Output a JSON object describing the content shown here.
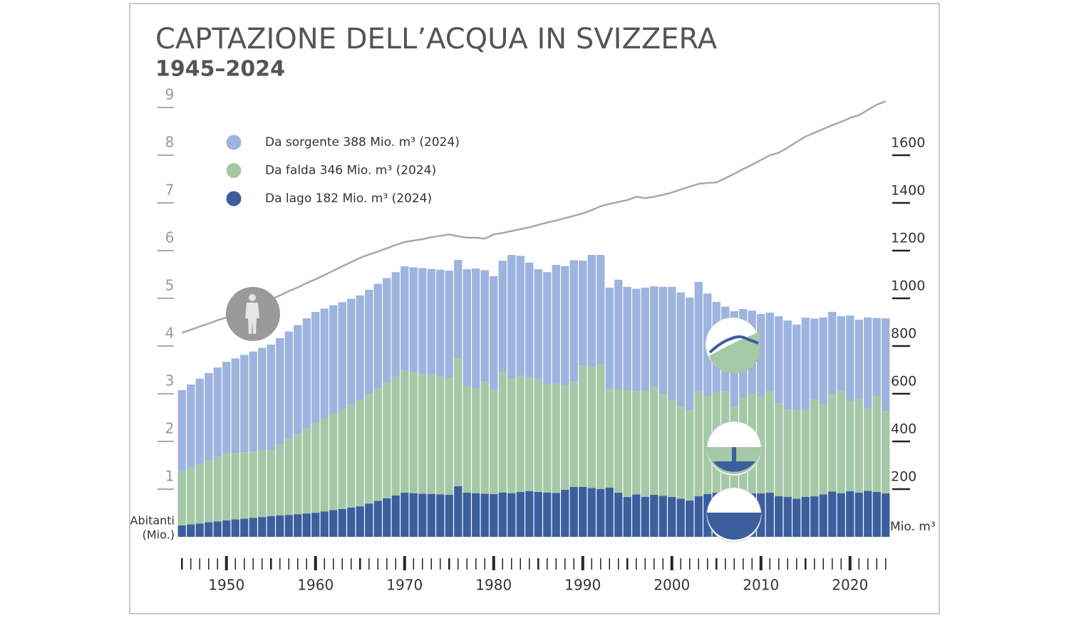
{
  "chart_data": {
    "type": "stacked-bar",
    "title": "CAPTAZIONE DELL’ACQUA IN SVIZZERA",
    "subtitle": "1945–2024",
    "ylabel": [
      "Abitanti",
      "(Mio.)"
    ],
    "y2label": "Mio. m³",
    "x": [
      1945,
      1946,
      1947,
      1948,
      1949,
      1950,
      1951,
      1952,
      1953,
      1954,
      1955,
      1956,
      1957,
      1958,
      1959,
      1960,
      1961,
      1962,
      1963,
      1964,
      1965,
      1966,
      1967,
      1968,
      1969,
      1970,
      1971,
      1972,
      1973,
      1974,
      1975,
      1976,
      1977,
      1978,
      1979,
      1980,
      1981,
      1982,
      1983,
      1984,
      1985,
      1986,
      1987,
      1988,
      1989,
      1990,
      1991,
      1992,
      1993,
      1994,
      1995,
      1996,
      1997,
      1998,
      1999,
      2000,
      2001,
      2002,
      2003,
      2004,
      2005,
      2006,
      2007,
      2008,
      2009,
      2010,
      2011,
      2012,
      2013,
      2014,
      2015,
      2016,
      2017,
      2018,
      2019,
      2020,
      2021,
      2022,
      2023,
      2024
    ],
    "xlim": [
      1944.5,
      2024.5
    ],
    "xticks": [
      1950,
      1960,
      1970,
      1980,
      1990,
      2000,
      2010,
      2020
    ],
    "ylim": [
      0,
      9.5
    ],
    "yticks": [
      1,
      2,
      3,
      4,
      5,
      6,
      7,
      8,
      9
    ],
    "y2lim": [
      0,
      1900
    ],
    "y2ticks": [
      200,
      400,
      600,
      800,
      1000,
      1200,
      1400,
      1600
    ],
    "series": [
      {
        "name": "Da sorgente 388 Mio. m³ (2024)",
        "color": "#9db4de",
        "axis": "y2",
        "values": [
          340,
          349,
          358,
          367,
          375,
          385,
          396,
          408,
          419,
          431,
          442,
          446,
          451,
          456,
          461,
          465,
          460,
          455,
          449,
          444,
          439,
          438,
          439,
          438,
          439,
          438,
          440,
          443,
          445,
          448,
          450,
          412,
          492,
          501,
          468,
          475,
          468,
          520,
          503,
          482,
          462,
          470,
          498,
          499,
          510,
          439,
          467,
          460,
          424,
          460,
          433,
          430,
          433,
          422,
          448,
          475,
          480,
          472,
          459,
          430,
          379,
          355,
          400,
          370,
          350,
          346,
          328,
          365,
          375,
          359,
          384,
          340,
          365,
          343,
          315,
          360,
          330,
          380,
          328,
          388
        ]
      },
      {
        "name": "Da falda 346 Mio. m³ (2024)",
        "color": "#a5c8a6",
        "axis": "y2",
        "values": [
          227,
          238,
          249,
          259,
          270,
          280,
          279,
          279,
          278,
          278,
          277,
          297,
          318,
          337,
          357,
          377,
          391,
          404,
          418,
          431,
          445,
          459,
          471,
          485,
          497,
          511,
          507,
          503,
          498,
          494,
          490,
          537,
          445,
          441,
          469,
          439,
          504,
          479,
          487,
          476,
          472,
          454,
          458,
          439,
          441,
          510,
          510,
          522,
          415,
          433,
          448,
          432,
          444,
          452,
          428,
          406,
          385,
          379,
          440,
          410,
          421,
          427,
          362,
          403,
          415,
          406,
          427,
          390,
          364,
          371,
          367,
          405,
          377,
          410,
          427,
          377,
          395,
          347,
          402,
          346
        ]
      },
      {
        "name": "Da lago 182 Mio. m³ (2024)",
        "color": "#3b5f9d",
        "axis": "y2",
        "values": [
          48,
          52,
          56,
          61,
          65,
          69,
          73,
          76,
          80,
          83,
          87,
          90,
          92,
          95,
          98,
          101,
          106,
          112,
          117,
          123,
          128,
          139,
          151,
          162,
          174,
          185,
          183,
          181,
          180,
          178,
          176,
          212,
          185,
          183,
          181,
          179,
          186,
          183,
          188,
          192,
          188,
          186,
          184,
          197,
          209,
          209,
          205,
          200,
          206,
          185,
          167,
          178,
          168,
          176,
          172,
          167,
          160,
          152,
          170,
          180,
          185,
          183,
          184,
          182,
          183,
          182,
          185,
          170,
          168,
          160,
          168,
          170,
          178,
          190,
          183,
          191,
          185,
          193,
          188,
          182
        ]
      }
    ],
    "population": {
      "color": "#a8a8a8",
      "axis": "y",
      "values": [
        4.28,
        4.34,
        4.41,
        4.47,
        4.54,
        4.6,
        4.68,
        4.75,
        4.83,
        4.9,
        4.98,
        5.06,
        5.15,
        5.23,
        5.32,
        5.4,
        5.49,
        5.58,
        5.67,
        5.76,
        5.85,
        5.92,
        5.98,
        6.05,
        6.12,
        6.18,
        6.21,
        6.24,
        6.28,
        6.31,
        6.34,
        6.3,
        6.27,
        6.27,
        6.25,
        6.34,
        6.37,
        6.41,
        6.45,
        6.49,
        6.54,
        6.59,
        6.63,
        6.68,
        6.73,
        6.78,
        6.85,
        6.93,
        6.98,
        7.02,
        7.06,
        7.13,
        7.1,
        7.13,
        7.17,
        7.22,
        7.28,
        7.34,
        7.4,
        7.42,
        7.43,
        7.52,
        7.61,
        7.71,
        7.8,
        7.9,
        8.0,
        8.05,
        8.16,
        8.28,
        8.39,
        8.47,
        8.55,
        8.63,
        8.7,
        8.78,
        8.84,
        8.95,
        9.06,
        9.13
      ]
    }
  }
}
